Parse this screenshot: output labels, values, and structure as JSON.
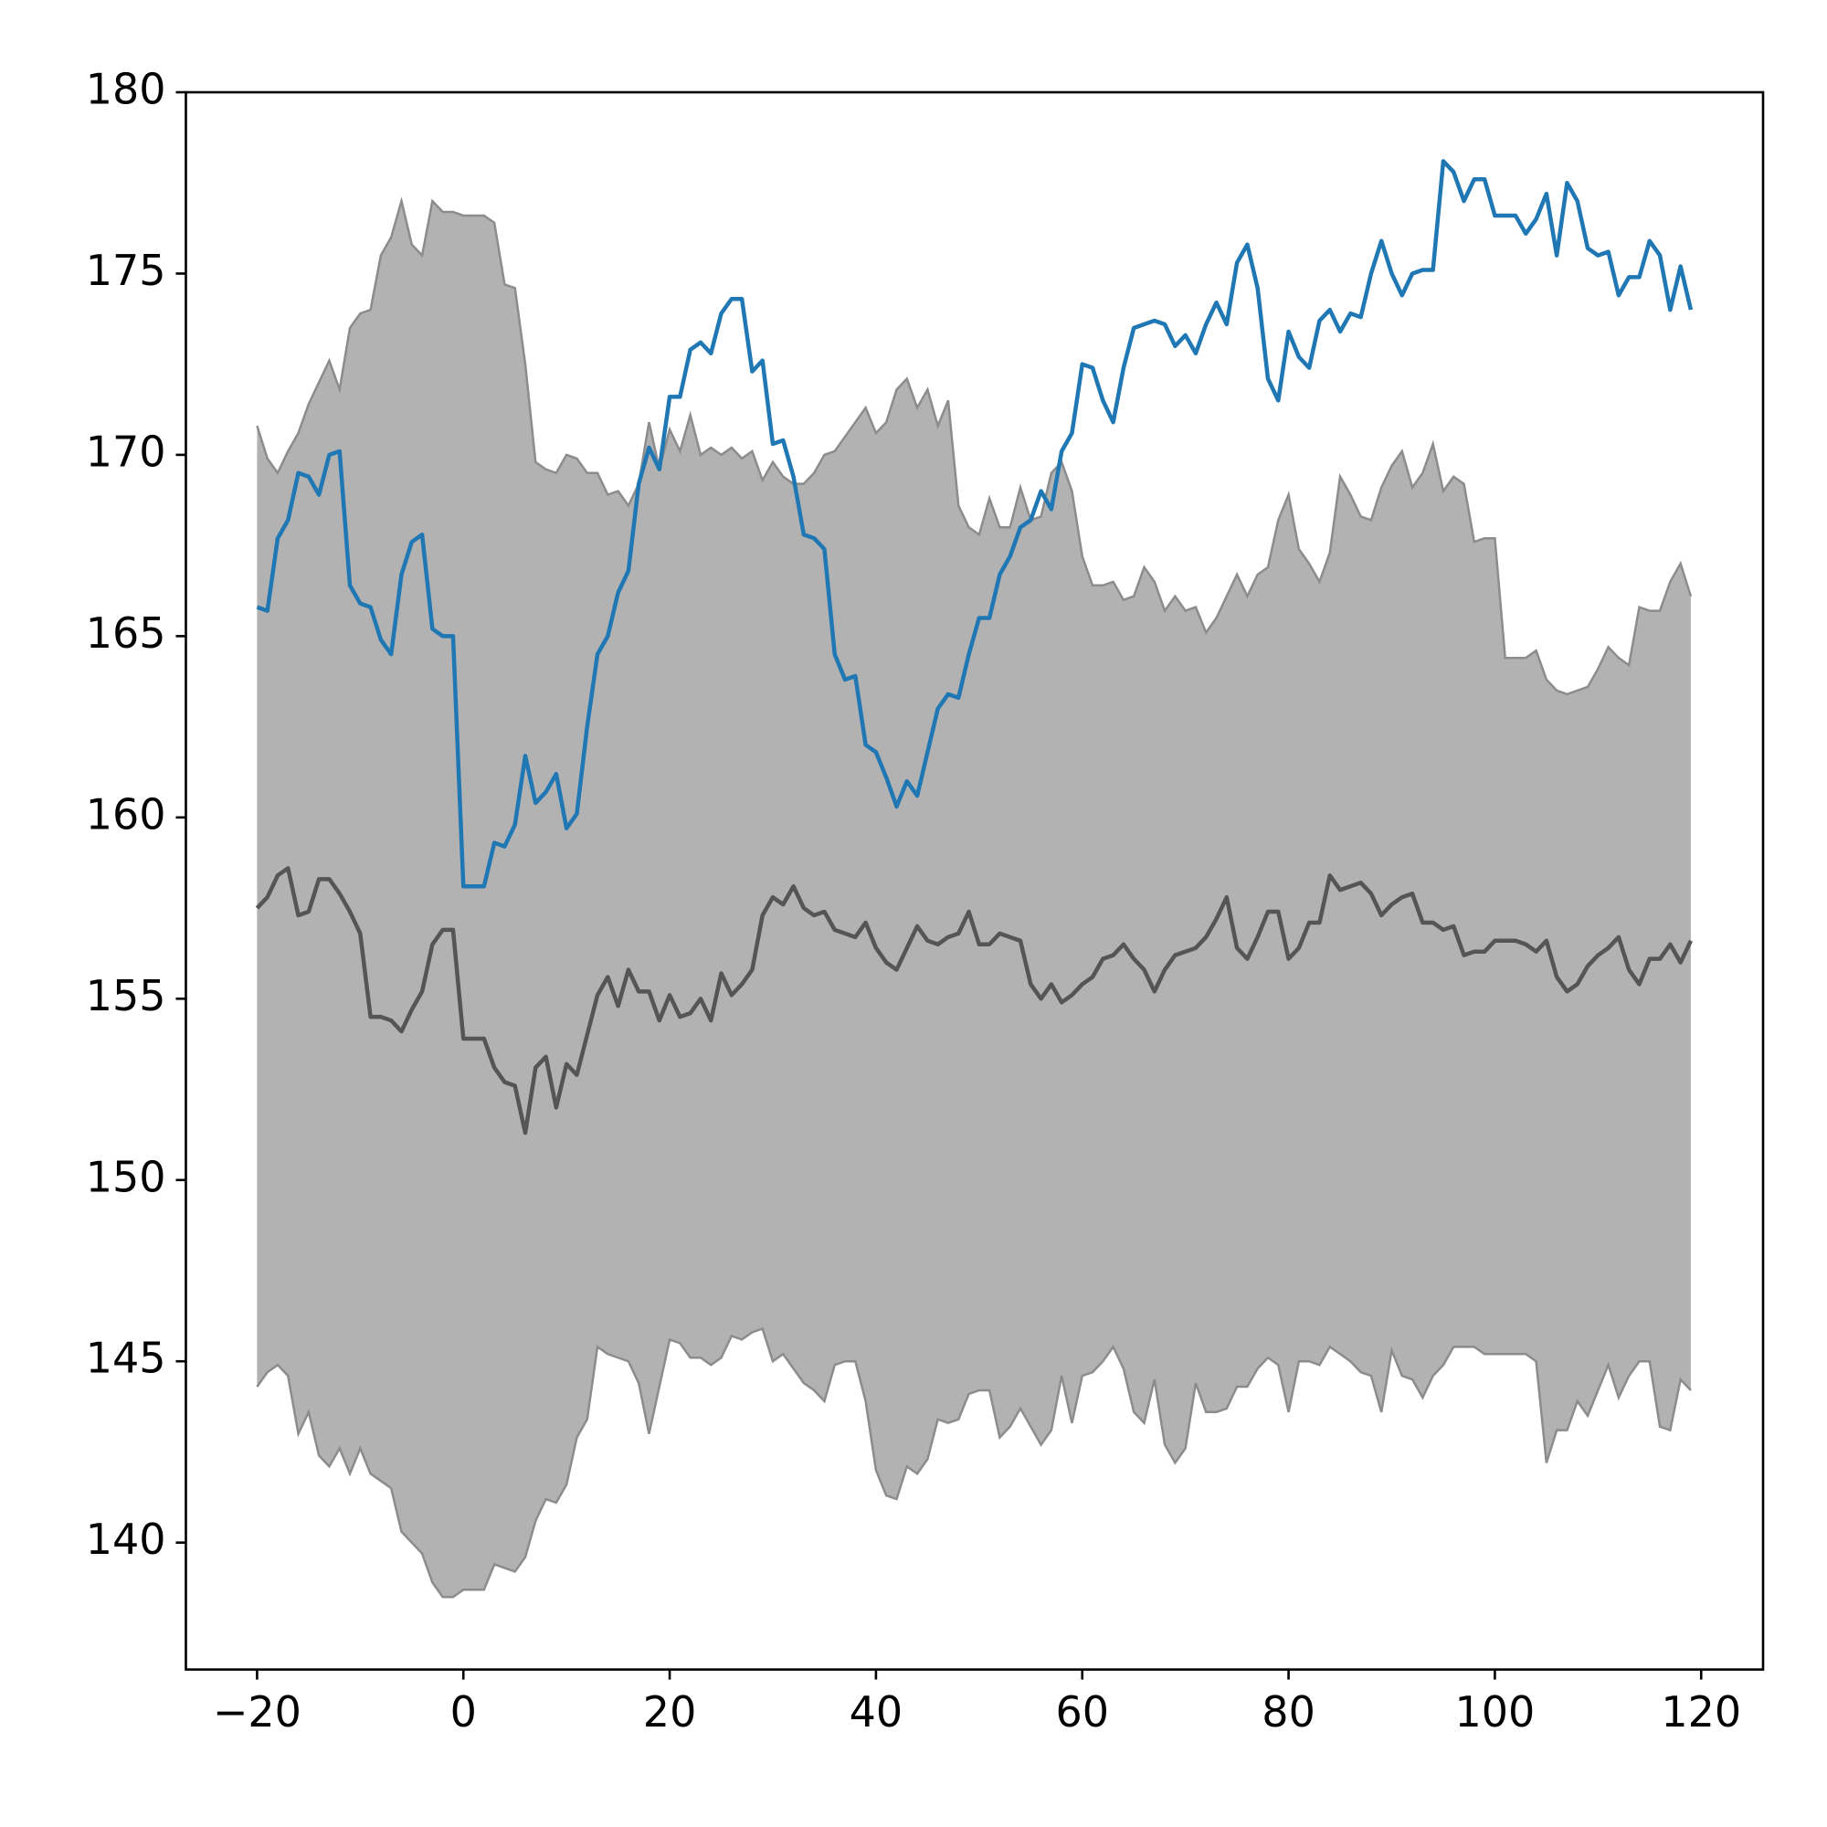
{
  "chart_data": {
    "type": "line",
    "x": [
      -20,
      -19,
      -18,
      -17,
      -16,
      -15,
      -14,
      -13,
      -12,
      -11,
      -10,
      -9,
      -8,
      -7,
      -6,
      -5,
      -4,
      -3,
      -2,
      -1,
      0,
      1,
      2,
      3,
      4,
      5,
      6,
      7,
      8,
      9,
      10,
      11,
      12,
      13,
      14,
      15,
      16,
      17,
      18,
      19,
      20,
      21,
      22,
      23,
      24,
      25,
      26,
      27,
      28,
      29,
      30,
      31,
      32,
      33,
      34,
      35,
      36,
      37,
      38,
      39,
      40,
      41,
      42,
      43,
      44,
      45,
      46,
      47,
      48,
      49,
      50,
      51,
      52,
      53,
      54,
      55,
      56,
      57,
      58,
      59,
      60,
      61,
      62,
      63,
      64,
      65,
      66,
      67,
      68,
      69,
      70,
      71,
      72,
      73,
      74,
      75,
      76,
      77,
      78,
      79,
      80,
      81,
      82,
      83,
      84,
      85,
      86,
      87,
      88,
      89,
      90,
      91,
      92,
      93,
      94,
      95,
      96,
      97,
      98,
      99,
      100,
      101,
      102,
      103,
      104,
      105,
      106,
      107,
      108,
      109,
      110,
      111,
      112,
      113,
      114,
      115,
      116,
      117,
      118,
      119
    ],
    "band": {
      "color": "#b2b2b2",
      "edge_color": "#8c8c8c",
      "upper": [
        170.8,
        169.9,
        169.5,
        170.1,
        170.6,
        171.4,
        172.0,
        172.6,
        171.8,
        173.5,
        173.9,
        174.0,
        175.5,
        176.0,
        177.0,
        175.8,
        175.5,
        177.0,
        176.7,
        176.7,
        176.6,
        176.6,
        176.6,
        176.4,
        174.7,
        174.6,
        172.5,
        169.8,
        169.6,
        169.5,
        170.0,
        169.9,
        169.5,
        169.5,
        168.9,
        169.0,
        168.6,
        169.2,
        170.9,
        169.6,
        170.7,
        170.1,
        171.1,
        170.0,
        170.2,
        170.0,
        170.2,
        169.9,
        170.1,
        169.3,
        169.8,
        169.4,
        169.2,
        169.2,
        169.5,
        170.0,
        170.1,
        170.5,
        170.9,
        171.3,
        170.6,
        170.9,
        171.8,
        172.1,
        171.3,
        171.8,
        170.8,
        171.5,
        168.6,
        168.0,
        167.8,
        168.8,
        168.0,
        168.0,
        169.1,
        168.2,
        168.3,
        169.5,
        169.8,
        169.0,
        167.2,
        166.4,
        166.4,
        166.5,
        166.0,
        166.1,
        166.9,
        166.5,
        165.7,
        166.1,
        165.7,
        165.8,
        165.1,
        165.5,
        166.1,
        166.7,
        166.1,
        166.7,
        166.9,
        168.2,
        168.9,
        167.4,
        167.0,
        166.5,
        167.3,
        169.4,
        168.9,
        168.3,
        168.2,
        169.1,
        169.7,
        170.1,
        169.1,
        169.5,
        170.3,
        169.0,
        169.4,
        169.2,
        167.6,
        167.7,
        167.7,
        164.4,
        164.4,
        164.4,
        164.6,
        163.8,
        163.5,
        163.4,
        163.5,
        163.6,
        164.1,
        164.7,
        164.4,
        164.2,
        165.8,
        165.7,
        165.7,
        166.5,
        167.0,
        166.1
      ],
      "lower": [
        144.3,
        144.7,
        144.9,
        144.6,
        143.0,
        143.6,
        142.4,
        142.1,
        142.6,
        141.9,
        142.6,
        141.9,
        141.7,
        141.5,
        140.3,
        140.0,
        139.7,
        138.9,
        138.5,
        138.5,
        138.7,
        138.7,
        138.7,
        139.4,
        139.3,
        139.2,
        139.6,
        140.6,
        141.2,
        141.1,
        141.6,
        142.9,
        143.4,
        145.4,
        145.2,
        145.1,
        145.0,
        144.4,
        143.0,
        144.3,
        145.6,
        145.5,
        145.1,
        145.1,
        144.9,
        145.1,
        145.7,
        145.6,
        145.8,
        145.9,
        145.0,
        145.2,
        144.8,
        144.4,
        144.2,
        143.9,
        144.9,
        145.0,
        145.0,
        143.9,
        142.0,
        141.3,
        141.2,
        142.1,
        141.9,
        142.3,
        143.4,
        143.3,
        143.4,
        144.1,
        144.2,
        144.2,
        142.9,
        143.2,
        143.7,
        143.2,
        142.7,
        143.1,
        144.6,
        143.3,
        144.6,
        144.7,
        145.0,
        145.4,
        144.8,
        143.6,
        143.3,
        144.5,
        142.7,
        142.2,
        142.6,
        144.4,
        143.6,
        143.6,
        143.7,
        144.3,
        144.3,
        144.8,
        145.1,
        144.9,
        143.6,
        145.0,
        145.0,
        144.9,
        145.4,
        145.2,
        145.0,
        144.7,
        144.6,
        143.6,
        145.3,
        144.6,
        144.5,
        144.0,
        144.6,
        144.9,
        145.4,
        145.4,
        145.4,
        145.2,
        145.2,
        145.2,
        145.2,
        145.2,
        145.0,
        142.2,
        143.1,
        143.1,
        143.9,
        143.5,
        144.2,
        144.9,
        144.0,
        144.6,
        145.0,
        145.0,
        143.2,
        143.1,
        144.5,
        144.2
      ]
    },
    "series": [
      {
        "color": "#555555",
        "values": [
          157.5,
          157.8,
          158.4,
          158.6,
          157.3,
          157.4,
          158.3,
          158.3,
          157.9,
          157.4,
          156.8,
          154.5,
          154.5,
          154.4,
          154.1,
          154.7,
          155.2,
          156.5,
          156.9,
          156.9,
          153.9,
          153.9,
          153.9,
          153.1,
          152.7,
          152.6,
          151.3,
          153.1,
          153.4,
          152.0,
          153.2,
          152.9,
          154.0,
          155.1,
          155.6,
          154.8,
          155.8,
          155.2,
          155.2,
          154.4,
          155.1,
          154.5,
          154.6,
          155.0,
          154.4,
          155.7,
          155.1,
          155.4,
          155.8,
          157.3,
          157.8,
          157.6,
          158.1,
          157.5,
          157.3,
          157.4,
          156.9,
          156.8,
          156.7,
          157.1,
          156.4,
          156.0,
          155.8,
          156.4,
          157.0,
          156.6,
          156.5,
          156.7,
          156.8,
          157.4,
          156.5,
          156.5,
          156.8,
          156.7,
          156.6,
          155.4,
          155.0,
          155.4,
          154.9,
          155.1,
          155.4,
          155.6,
          156.1,
          156.2,
          156.5,
          156.1,
          155.8,
          155.2,
          155.8,
          156.2,
          156.3,
          156.4,
          156.7,
          157.2,
          157.8,
          156.4,
          156.1,
          156.7,
          157.4,
          157.4,
          156.1,
          156.4,
          157.1,
          157.1,
          158.4,
          158.0,
          158.1,
          158.2,
          157.9,
          157.3,
          157.6,
          157.8,
          157.9,
          157.1,
          157.1,
          156.9,
          157.0,
          156.2,
          156.3,
          156.3,
          156.6,
          156.6,
          156.6,
          156.5,
          156.3,
          156.6,
          155.6,
          155.2,
          155.4,
          155.9,
          156.2,
          156.4,
          156.7,
          155.8,
          155.4,
          156.1,
          156.1,
          156.5,
          156.0,
          156.6
        ]
      },
      {
        "color": "#1f77b4",
        "values": [
          165.8,
          165.7,
          167.7,
          168.2,
          169.5,
          169.4,
          168.9,
          170.0,
          170.1,
          166.4,
          165.9,
          165.8,
          164.9,
          164.5,
          166.7,
          167.6,
          167.8,
          165.2,
          165.0,
          165.0,
          158.1,
          158.1,
          158.1,
          159.3,
          159.2,
          159.8,
          161.7,
          160.4,
          160.7,
          161.2,
          159.7,
          160.1,
          162.5,
          164.5,
          165.0,
          166.2,
          166.8,
          169.2,
          170.2,
          169.6,
          171.6,
          171.6,
          172.9,
          173.1,
          172.8,
          173.9,
          174.3,
          174.3,
          172.3,
          172.6,
          170.3,
          170.4,
          169.4,
          167.8,
          167.7,
          167.4,
          164.5,
          163.8,
          163.9,
          162.0,
          161.8,
          161.1,
          160.3,
          161.0,
          160.6,
          161.8,
          163.0,
          163.4,
          163.3,
          164.5,
          165.5,
          165.5,
          166.7,
          167.2,
          168.0,
          168.2,
          169.0,
          168.5,
          170.1,
          170.6,
          172.5,
          172.4,
          171.5,
          170.9,
          172.4,
          173.5,
          173.6,
          173.7,
          173.6,
          173.0,
          173.3,
          172.8,
          173.6,
          174.2,
          173.6,
          175.3,
          175.8,
          174.6,
          172.1,
          171.5,
          173.4,
          172.7,
          172.4,
          173.7,
          174.0,
          173.4,
          173.9,
          173.8,
          175.0,
          175.9,
          175.0,
          174.4,
          175.0,
          175.1,
          175.1,
          178.1,
          177.8,
          177.0,
          177.6,
          177.6,
          176.6,
          176.6,
          176.6,
          176.1,
          176.5,
          177.2,
          175.5,
          177.5,
          177.0,
          175.7,
          175.5,
          175.6,
          174.4,
          174.9,
          174.9,
          175.9,
          175.5,
          174.0,
          175.2,
          174.0
        ]
      }
    ],
    "xlim": [
      -26.9,
      126.0
    ],
    "ylim": [
      136.5,
      180
    ],
    "xticks": [
      {
        "value": -20,
        "label": "−20"
      },
      0,
      20,
      40,
      60,
      80,
      100,
      120
    ],
    "yticks": [
      140,
      145,
      150,
      155,
      160,
      165,
      170,
      175,
      180
    ],
    "grid": false
  }
}
